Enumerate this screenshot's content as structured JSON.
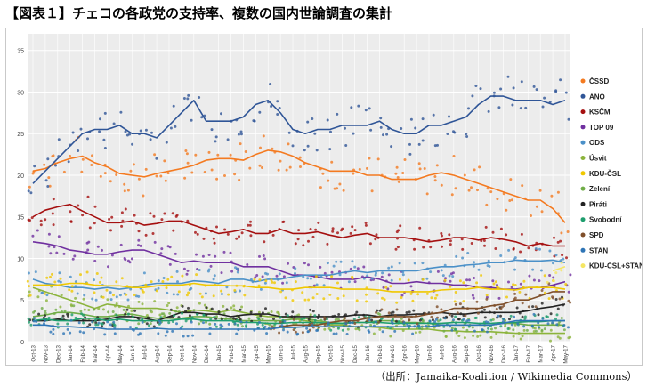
{
  "title": "【図表１】チェコの各政党の支持率、複数の国内世論調査の集計",
  "source": "（出所：Jamaika-Koalition / Wikimedia Commons）",
  "colors": {
    "background": "#ececec",
    "grid": "#ffffff"
  },
  "chart_data": {
    "type": "line",
    "title": "",
    "xlabel": "",
    "ylabel": "",
    "ylim": [
      0,
      37
    ],
    "yticks": [
      0,
      5,
      10,
      15,
      20,
      25,
      30,
      35
    ],
    "grid": true,
    "legend_position": "right",
    "x_tick_labels": [
      "Oct-13",
      "Nov-13",
      "Dec-13",
      "Jan-14",
      "Feb-14",
      "Mar-14",
      "Apr-14",
      "May-14",
      "Jun-14",
      "Jul-14",
      "Aug-14",
      "Sep-14",
      "Oct-14",
      "Nov-14",
      "Dec-14",
      "Jan-15",
      "Feb-15",
      "Mar-15",
      "Apr-15",
      "May-15",
      "Jun-15",
      "Jul-15",
      "Aug-15",
      "Sep-15",
      "Oct-15",
      "Nov-15",
      "Dec-15",
      "Jan-16",
      "Feb-16",
      "Mar-16",
      "Apr-16",
      "May-16",
      "Jun-16",
      "Jul-16",
      "Aug-16",
      "Sep-16",
      "Oct-16",
      "Nov-16",
      "Dec-16",
      "Jan-17",
      "Feb-17",
      "Mar-17",
      "Apr-17",
      "May-17"
    ],
    "series": [
      {
        "name": "ČSSD",
        "color": "#f47a20",
        "values": [
          20.5,
          20.8,
          21.5,
          22,
          22.3,
          21.5,
          21,
          20.2,
          20,
          19.8,
          20.2,
          20.5,
          20.8,
          21.2,
          21.8,
          22,
          22,
          21.8,
          22.5,
          23,
          22.8,
          22.3,
          21.5,
          21,
          20.5,
          20.5,
          20.5,
          20,
          20,
          19.5,
          19.5,
          19.5,
          20,
          20.3,
          20,
          19.5,
          19,
          18.5,
          18,
          17.5,
          17,
          17,
          16,
          14.3
        ]
      },
      {
        "name": "ANO",
        "color": "#2f5597",
        "values": [
          19,
          20.5,
          22,
          23.5,
          25,
          25.5,
          25.5,
          26,
          25,
          25,
          24.5,
          26,
          27.5,
          29,
          26.5,
          26.5,
          26.5,
          27,
          28.5,
          29,
          27.5,
          25.5,
          25,
          25.5,
          25.5,
          26,
          26,
          26,
          26.5,
          25.5,
          25,
          25,
          26,
          26,
          26.5,
          27,
          28.5,
          29.5,
          29.5,
          29,
          29,
          29,
          28.5,
          29
        ]
      },
      {
        "name": "KSČM",
        "color": "#a50f0f",
        "values": [
          15,
          15.8,
          16.2,
          16.5,
          15.7,
          15,
          14.3,
          14.3,
          14.5,
          14,
          14.2,
          14.5,
          14.5,
          14,
          13.5,
          13,
          13.2,
          13.5,
          13,
          13,
          13.5,
          13,
          13,
          13.2,
          12.8,
          12.5,
          12.8,
          13,
          12.5,
          12.5,
          12.5,
          12.3,
          12,
          12.2,
          12.5,
          12.5,
          12.2,
          12.5,
          12.3,
          12,
          11.5,
          11.8,
          11.5,
          11.5
        ]
      },
      {
        "name": "TOP 09",
        "color": "#7030a0",
        "values": [
          12,
          11.8,
          11.5,
          11,
          10.8,
          10.5,
          10.5,
          10.8,
          11,
          11,
          10.5,
          10,
          9.5,
          9.7,
          9.5,
          9.5,
          9.5,
          9,
          9,
          9,
          8.5,
          8,
          8,
          7.8,
          7.5,
          7.5,
          7.5,
          7.8,
          7.5,
          7,
          7,
          7.2,
          7,
          7,
          6.8,
          6.8,
          6.5,
          6.5,
          6.3,
          6.3,
          6.5,
          6.5,
          6.8,
          7.2
        ]
      },
      {
        "name": "ODS",
        "color": "#4a90c8",
        "values": [
          7.5,
          7,
          6.8,
          6.5,
          6.5,
          6.3,
          6.5,
          6.3,
          6.5,
          6.8,
          7,
          7,
          7,
          7.3,
          7.2,
          7,
          7.5,
          7.5,
          7.2,
          7.5,
          7.5,
          7.8,
          8,
          8,
          8,
          8.3,
          8.5,
          8.3,
          8.5,
          8.5,
          8.5,
          8.5,
          8.8,
          9,
          9,
          9.2,
          9.3,
          9.5,
          9.5,
          9.8,
          9.7,
          9.7,
          9.8,
          9.5
        ]
      },
      {
        "name": "Úsvit",
        "color": "#8cb43c",
        "values": [
          6.5,
          6,
          5.5,
          5,
          4.5,
          4,
          4.5,
          4.3,
          4,
          4,
          4,
          3.8,
          3.5,
          3.8,
          3.7,
          3.5,
          3.8,
          3.5,
          3.2,
          3,
          3,
          2.8,
          2.5,
          2.3,
          2,
          2,
          1.8,
          1.8,
          1.7,
          1.5,
          1.5,
          1.5,
          1.5,
          1.3,
          1.3,
          1.2,
          1.2,
          1.2,
          1.1,
          1,
          1,
          1,
          1,
          1
        ]
      },
      {
        "name": "KDU-ČSL",
        "color": "#f0c800",
        "values": [
          6.8,
          6.8,
          6.8,
          7,
          7,
          6.8,
          6.7,
          6.7,
          6.5,
          6.5,
          6.7,
          6.8,
          6.8,
          7,
          6.8,
          6.8,
          6.7,
          6.7,
          6.5,
          6.5,
          6.3,
          6.3,
          6.5,
          6.5,
          6.5,
          6.3,
          6.3,
          6.3,
          6.2,
          6,
          6,
          6,
          6,
          6.2,
          6.3,
          6.3,
          6.5,
          6.3,
          6.3,
          6.2,
          6.5,
          6.5,
          6.5,
          6.3
        ]
      },
      {
        "name": "Zelení",
        "color": "#70ad47",
        "values": [
          3,
          3.2,
          3.5,
          3.5,
          3.3,
          3,
          3,
          3.2,
          3.3,
          3,
          2.8,
          2.8,
          2.8,
          3,
          3,
          2.8,
          2.7,
          2.5,
          2.5,
          2.5,
          2.5,
          2.7,
          2.8,
          2.5,
          2.3,
          2.2,
          2.3,
          2.3,
          2.5,
          2.5,
          2.3,
          2.3,
          2.2,
          2,
          2,
          2,
          2,
          2,
          2.2,
          2.2,
          2,
          2,
          2,
          2
        ]
      },
      {
        "name": "Piráti",
        "color": "#222222",
        "values": [
          2.5,
          2.5,
          2.7,
          2.5,
          2.5,
          2.5,
          2.7,
          3,
          3,
          2.8,
          2.5,
          3,
          3.5,
          3.5,
          3.3,
          3.3,
          3,
          3.2,
          3.3,
          3.3,
          3,
          3,
          3,
          3,
          3,
          3,
          3.2,
          3.2,
          3,
          3.2,
          3.2,
          3.3,
          3.3,
          3.5,
          3.3,
          3.3,
          3.5,
          3.5,
          3.5,
          3.5,
          3.7,
          4,
          4.2,
          4.5
        ]
      },
      {
        "name": "Svobodní",
        "color": "#1f9e6e",
        "values": [
          2.5,
          2.7,
          2.5,
          2.5,
          2.8,
          2.8,
          2.5,
          2.7,
          2.5,
          2.5,
          2.5,
          2.5,
          2.7,
          2.7,
          2.5,
          2.5,
          2.5,
          2.3,
          2.3,
          2.2,
          2.2,
          2.3,
          2.3,
          2.3,
          2.2,
          2.2,
          2.3,
          2.3,
          2.3,
          2.2,
          2.2,
          2.2,
          2.2,
          2.2,
          2.3,
          2.3,
          2.2,
          2.2,
          2.3,
          2.3,
          2.4,
          2.4,
          2.5,
          2.5
        ]
      },
      {
        "name": "SPD",
        "color": "#7f4f2a",
        "values": [
          null,
          null,
          null,
          null,
          null,
          null,
          null,
          null,
          null,
          null,
          null,
          null,
          null,
          null,
          null,
          null,
          null,
          null,
          null,
          1.5,
          1.8,
          2,
          2,
          2,
          2.3,
          2.5,
          2.5,
          2.8,
          3,
          3,
          3,
          3,
          3.3,
          3.5,
          4,
          4,
          4,
          4.3,
          4.5,
          5,
          5,
          5.5,
          6,
          6
        ]
      },
      {
        "name": "STAN",
        "color": "#2e75b6",
        "values": [
          2,
          2,
          1.8,
          1.8,
          1.7,
          1.7,
          1.5,
          1.5,
          1.5,
          1.5,
          1.6,
          1.5,
          1.5,
          1.5,
          1.5,
          1.5,
          1.5,
          1.5,
          1.5,
          1.5,
          1.7,
          1.7,
          1.8,
          1.8,
          1.8,
          1.8,
          1.8,
          1.8,
          1.8,
          1.8,
          1.8,
          1.8,
          1.8,
          2,
          2,
          2,
          2,
          2,
          2.2,
          2.5,
          2.5,
          2.5,
          2.5,
          2.5
        ]
      },
      {
        "name": "KDU-ČSL+STAN",
        "color": "#f5e663",
        "values": [
          null,
          null,
          null,
          null,
          null,
          null,
          null,
          null,
          null,
          null,
          null,
          null,
          null,
          null,
          null,
          null,
          null,
          null,
          null,
          null,
          null,
          null,
          null,
          null,
          null,
          null,
          null,
          null,
          null,
          null,
          null,
          null,
          null,
          null,
          null,
          null,
          null,
          null,
          null,
          null,
          null,
          null,
          8.5,
          9
        ]
      }
    ]
  }
}
